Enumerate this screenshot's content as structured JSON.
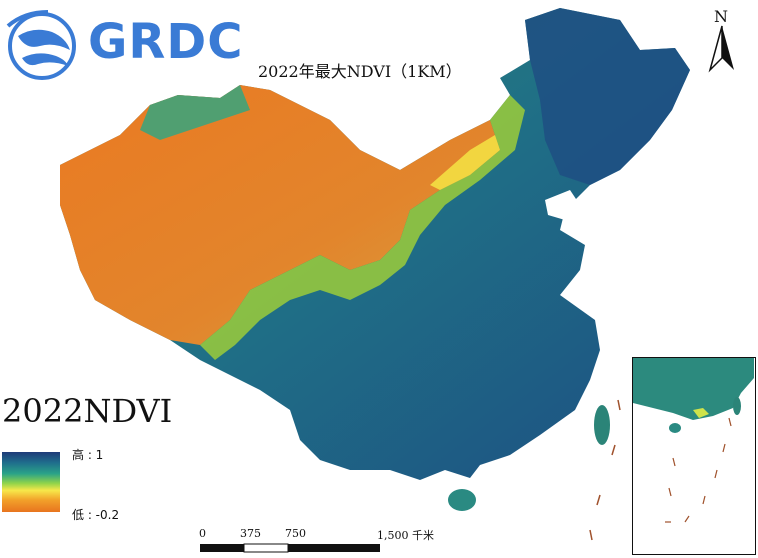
{
  "logo": {
    "text": "GRDC"
  },
  "map": {
    "title": "2022年最大NDVI（1KM）",
    "north_label": "N",
    "big_label": "2022NDVI"
  },
  "legend": {
    "high_label": "高 : 1",
    "low_label": "低 : -0.2",
    "colors": [
      "#1e3a78",
      "#1f6e8c",
      "#2aa288",
      "#8fd34a",
      "#f7e84a",
      "#f2a12a",
      "#e8741f"
    ]
  },
  "scale_bar": {
    "ticks": [
      "0",
      "375",
      "750",
      "1,500 千米"
    ]
  },
  "colors": {
    "logo_blue": "#3a7bd5",
    "desert_orange": "#e8741f",
    "forest_blue": "#1f5a86"
  }
}
